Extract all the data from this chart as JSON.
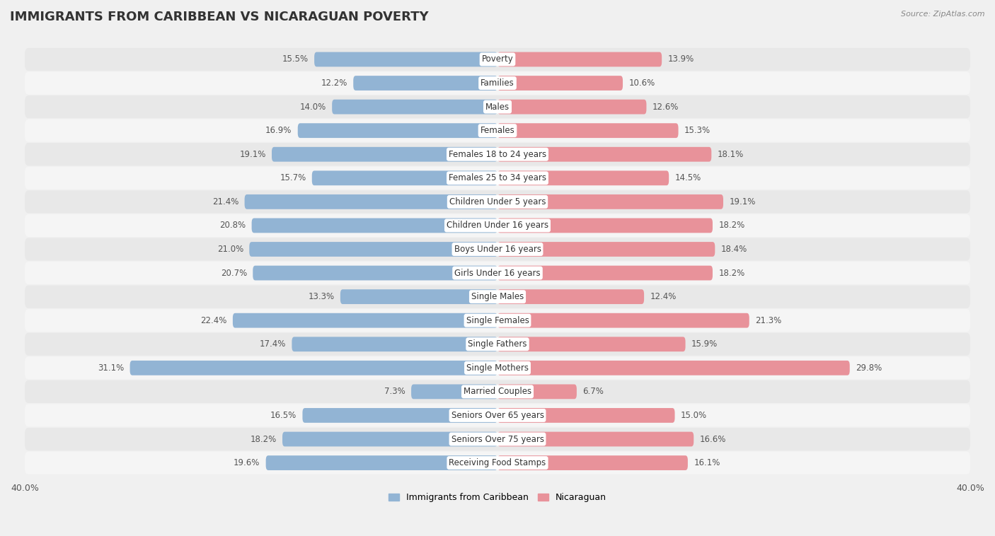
{
  "title": "IMMIGRANTS FROM CARIBBEAN VS NICARAGUAN POVERTY",
  "source": "Source: ZipAtlas.com",
  "categories": [
    "Poverty",
    "Families",
    "Males",
    "Females",
    "Females 18 to 24 years",
    "Females 25 to 34 years",
    "Children Under 5 years",
    "Children Under 16 years",
    "Boys Under 16 years",
    "Girls Under 16 years",
    "Single Males",
    "Single Females",
    "Single Fathers",
    "Single Mothers",
    "Married Couples",
    "Seniors Over 65 years",
    "Seniors Over 75 years",
    "Receiving Food Stamps"
  ],
  "left_values": [
    15.5,
    12.2,
    14.0,
    16.9,
    19.1,
    15.7,
    21.4,
    20.8,
    21.0,
    20.7,
    13.3,
    22.4,
    17.4,
    31.1,
    7.3,
    16.5,
    18.2,
    19.6
  ],
  "right_values": [
    13.9,
    10.6,
    12.6,
    15.3,
    18.1,
    14.5,
    19.1,
    18.2,
    18.4,
    18.2,
    12.4,
    21.3,
    15.9,
    29.8,
    6.7,
    15.0,
    16.6,
    16.1
  ],
  "left_color": "#92b4d4",
  "right_color": "#e8929a",
  "max_val": 40.0,
  "background_color": "#f0f0f0",
  "row_even_color": "#e8e8e8",
  "row_odd_color": "#f5f5f5",
  "legend_left": "Immigrants from Caribbean",
  "legend_right": "Nicaraguan",
  "title_fontsize": 13,
  "label_fontsize": 8.5,
  "value_fontsize": 8.5,
  "axis_label_fontsize": 9
}
